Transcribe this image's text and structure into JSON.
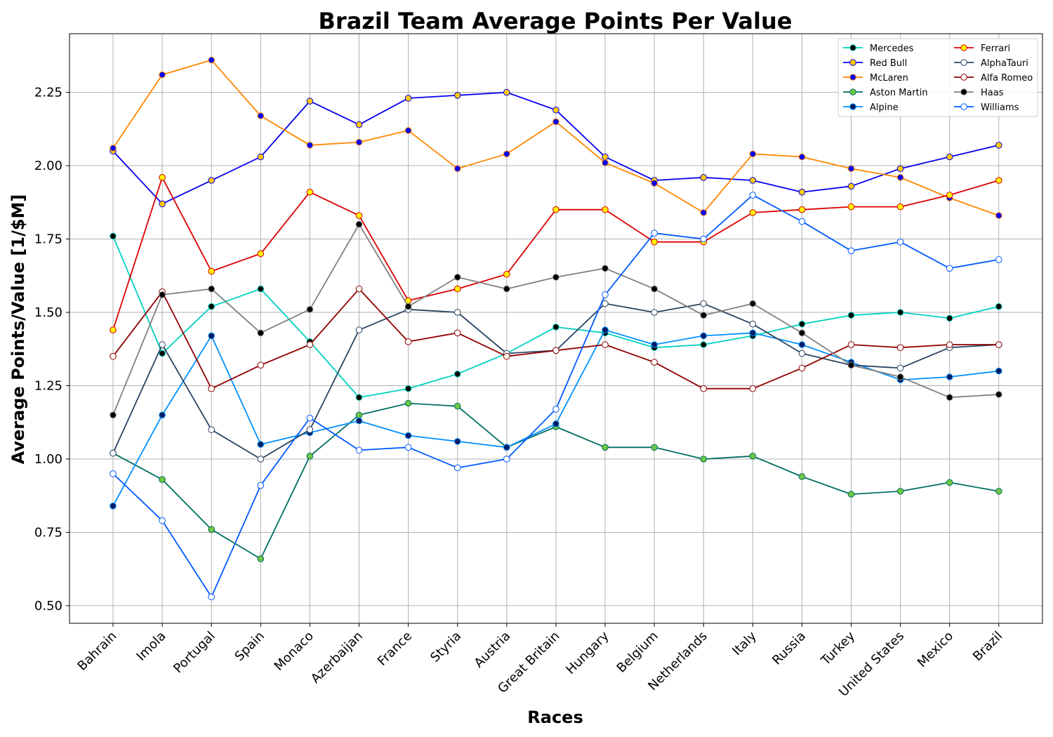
{
  "chart_data": {
    "type": "line",
    "title": "Brazil Team Average Points Per Value",
    "xlabel": "Races",
    "ylabel": "Average Points/Value [1/$M]",
    "ylim": [
      0.44,
      2.45
    ],
    "yticks": [
      "0.50",
      "0.75",
      "1.00",
      "1.25",
      "1.50",
      "1.75",
      "2.00",
      "2.25"
    ],
    "grid": true,
    "legend_position": "top-right",
    "categories": [
      "Bahrain",
      "Imola",
      "Portugal",
      "Spain",
      "Monaco",
      "Azerbaijan",
      "France",
      "Styria",
      "Austria",
      "Great Britain",
      "Hungary",
      "Belgium",
      "Netherlands",
      "Italy",
      "Russia",
      "Turkey",
      "United States",
      "Mexico",
      "Brazil"
    ],
    "series": [
      {
        "name": "Mercedes",
        "color": "#00d2be",
        "marker": "#000000",
        "values": [
          1.76,
          1.36,
          1.52,
          1.58,
          1.4,
          1.21,
          1.24,
          1.29,
          1.36,
          1.45,
          1.43,
          1.38,
          1.39,
          1.42,
          1.46,
          1.49,
          1.5,
          1.48,
          1.52
        ]
      },
      {
        "name": "Red Bull",
        "color": "#0600ef",
        "marker": "#ffc906",
        "values": [
          2.05,
          1.87,
          1.95,
          2.03,
          2.22,
          2.14,
          2.23,
          2.24,
          2.25,
          2.19,
          2.03,
          1.95,
          1.96,
          1.95,
          1.91,
          1.93,
          1.99,
          2.03,
          2.07
        ]
      },
      {
        "name": "McLaren",
        "color": "#ff8700",
        "marker": "#0000ff",
        "values": [
          2.06,
          2.31,
          2.36,
          2.17,
          2.07,
          2.08,
          2.12,
          1.99,
          2.04,
          2.15,
          2.01,
          1.94,
          1.84,
          2.04,
          2.03,
          1.99,
          1.96,
          1.89,
          1.83
        ]
      },
      {
        "name": "Aston Martin",
        "color": "#006f62",
        "marker": "#6ec642",
        "values": [
          1.02,
          0.93,
          0.76,
          0.66,
          1.01,
          1.15,
          1.19,
          1.18,
          1.04,
          1.11,
          1.04,
          1.04,
          1.0,
          1.01,
          0.94,
          0.88,
          0.89,
          0.92,
          0.89
        ]
      },
      {
        "name": "Alpine",
        "color": "#0090ff",
        "marker": "#001c64",
        "values": [
          0.84,
          1.15,
          1.42,
          1.05,
          1.09,
          1.13,
          1.08,
          1.06,
          1.04,
          1.12,
          1.44,
          1.39,
          1.42,
          1.43,
          1.39,
          1.33,
          1.27,
          1.28,
          1.3
        ]
      },
      {
        "name": "Ferrari",
        "color": "#dc0000",
        "marker": "#fff200",
        "values": [
          1.44,
          1.96,
          1.64,
          1.7,
          1.91,
          1.83,
          1.54,
          1.58,
          1.63,
          1.85,
          1.85,
          1.74,
          1.74,
          1.84,
          1.85,
          1.86,
          1.86,
          1.9,
          1.95
        ]
      },
      {
        "name": "AlphaTauri",
        "color": "#2b4562",
        "marker": "#ffffff",
        "values": [
          1.02,
          1.39,
          1.1,
          1.0,
          1.1,
          1.44,
          1.51,
          1.5,
          1.36,
          1.37,
          1.53,
          1.5,
          1.53,
          1.46,
          1.36,
          1.32,
          1.31,
          1.38,
          1.39
        ]
      },
      {
        "name": "Alfa Romeo",
        "color": "#900000",
        "marker": "#ffffff",
        "values": [
          1.35,
          1.57,
          1.24,
          1.32,
          1.39,
          1.58,
          1.4,
          1.43,
          1.35,
          1.37,
          1.39,
          1.33,
          1.24,
          1.24,
          1.31,
          1.39,
          1.38,
          1.39,
          1.39
        ]
      },
      {
        "name": "Haas",
        "color": "#808080",
        "marker": "#000000",
        "values": [
          1.15,
          1.56,
          1.58,
          1.43,
          1.51,
          1.8,
          1.52,
          1.62,
          1.58,
          1.62,
          1.65,
          1.58,
          1.49,
          1.53,
          1.43,
          1.32,
          1.28,
          1.21,
          1.22
        ]
      },
      {
        "name": "Williams",
        "color": "#005aff",
        "marker": "#ffffff",
        "values": [
          0.95,
          0.79,
          0.53,
          0.91,
          1.14,
          1.03,
          1.04,
          0.97,
          1.0,
          1.17,
          1.56,
          1.77,
          1.75,
          1.9,
          1.81,
          1.71,
          1.74,
          1.65,
          1.68
        ]
      }
    ]
  }
}
